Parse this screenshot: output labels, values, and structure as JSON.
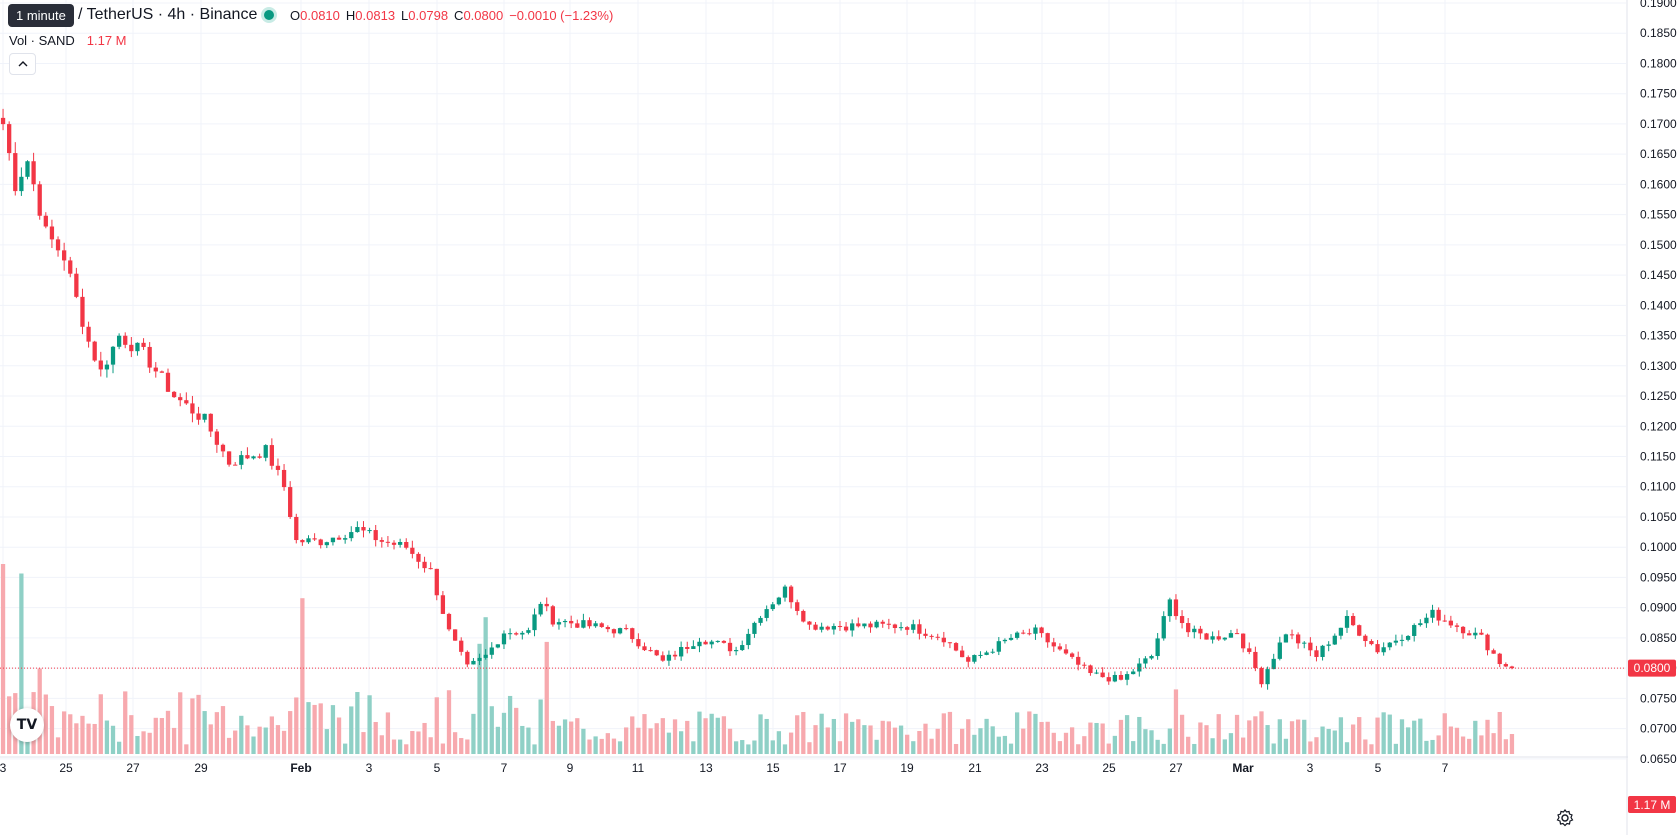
{
  "header": {
    "tooltip": "1 minute",
    "symbol_title": "/ TetherUS · 4h · Binance",
    "ohlc": [
      {
        "key": "O",
        "value": "0.0810"
      },
      {
        "key": "H",
        "value": "0.0813"
      },
      {
        "key": "L",
        "value": "0.0798"
      },
      {
        "key": "C",
        "value": "0.0800"
      },
      {
        "key": "",
        "value": "−0.0010 (−1.23%)"
      }
    ],
    "volume_label": "Vol · SAND",
    "volume_value": "1.17 M",
    "collapse_icon": "chevron-up-icon",
    "logo_text": "TV"
  },
  "colors": {
    "up": "#089981",
    "down": "#f23645",
    "up_volume": "#8fd0c6",
    "down_volume": "#f7a9ae",
    "grid": "#f0f3fa",
    "price_line": "#f23645"
  },
  "chart_data": {
    "type": "candlestick",
    "interval": "4h",
    "y_axis": {
      "min": 0.0615,
      "max": 0.19,
      "ticks": [
        "0.1900",
        "0.1850",
        "0.1800",
        "0.1750",
        "0.1700",
        "0.1650",
        "0.1600",
        "0.1550",
        "0.1500",
        "0.1450",
        "0.1400",
        "0.1350",
        "0.1300",
        "0.1250",
        "0.1200",
        "0.1150",
        "0.1100",
        "0.1050",
        "0.1000",
        "0.0950",
        "0.0900",
        "0.0850",
        "0.0800",
        "0.0750",
        "0.0700",
        "0.0650"
      ],
      "last_price_label": "0.0800",
      "volume_label": "1.17 M"
    },
    "x_axis": {
      "ticks": [
        "3",
        "25",
        "27",
        "29",
        "Feb",
        "3",
        "5",
        "7",
        "9",
        "11",
        "13",
        "15",
        "17",
        "19",
        "21",
        "23",
        "25",
        "27",
        "Mar",
        "3",
        "5",
        "7"
      ]
    },
    "close_anchors": [
      {
        "t": 0,
        "v": 0.17
      },
      {
        "t": 2,
        "v": 0.16
      },
      {
        "t": 4,
        "v": 0.164
      },
      {
        "t": 7,
        "v": 0.152
      },
      {
        "t": 10,
        "v": 0.148
      },
      {
        "t": 14,
        "v": 0.134
      },
      {
        "t": 16,
        "v": 0.129
      },
      {
        "t": 19,
        "v": 0.135
      },
      {
        "t": 23,
        "v": 0.132
      },
      {
        "t": 28,
        "v": 0.125
      },
      {
        "t": 33,
        "v": 0.121
      },
      {
        "t": 37,
        "v": 0.114
      },
      {
        "t": 43,
        "v": 0.116
      },
      {
        "t": 46,
        "v": 0.11
      },
      {
        "t": 48,
        "v": 0.101
      },
      {
        "t": 52,
        "v": 0.101
      },
      {
        "t": 58,
        "v": 0.103
      },
      {
        "t": 62,
        "v": 0.101
      },
      {
        "t": 66,
        "v": 0.1
      },
      {
        "t": 70,
        "v": 0.096
      },
      {
        "t": 73,
        "v": 0.086
      },
      {
        "t": 76,
        "v": 0.08
      },
      {
        "t": 79,
        "v": 0.082
      },
      {
        "t": 82,
        "v": 0.086
      },
      {
        "t": 86,
        "v": 0.086
      },
      {
        "t": 88,
        "v": 0.091
      },
      {
        "t": 90,
        "v": 0.088
      },
      {
        "t": 96,
        "v": 0.087
      },
      {
        "t": 102,
        "v": 0.086
      },
      {
        "t": 108,
        "v": 0.081
      },
      {
        "t": 114,
        "v": 0.085
      },
      {
        "t": 120,
        "v": 0.083
      },
      {
        "t": 124,
        "v": 0.089
      },
      {
        "t": 128,
        "v": 0.093
      },
      {
        "t": 132,
        "v": 0.087
      },
      {
        "t": 140,
        "v": 0.087
      },
      {
        "t": 148,
        "v": 0.087
      },
      {
        "t": 154,
        "v": 0.085
      },
      {
        "t": 158,
        "v": 0.081
      },
      {
        "t": 165,
        "v": 0.085
      },
      {
        "t": 169,
        "v": 0.086
      },
      {
        "t": 174,
        "v": 0.082
      },
      {
        "t": 178,
        "v": 0.079
      },
      {
        "t": 183,
        "v": 0.078
      },
      {
        "t": 188,
        "v": 0.082
      },
      {
        "t": 191,
        "v": 0.091
      },
      {
        "t": 194,
        "v": 0.086
      },
      {
        "t": 198,
        "v": 0.085
      },
      {
        "t": 202,
        "v": 0.086
      },
      {
        "t": 206,
        "v": 0.078
      },
      {
        "t": 210,
        "v": 0.086
      },
      {
        "t": 215,
        "v": 0.082
      },
      {
        "t": 220,
        "v": 0.088
      },
      {
        "t": 225,
        "v": 0.083
      },
      {
        "t": 230,
        "v": 0.086
      },
      {
        "t": 234,
        "v": 0.089
      },
      {
        "t": 238,
        "v": 0.087
      },
      {
        "t": 242,
        "v": 0.085
      },
      {
        "t": 245,
        "v": 0.081
      },
      {
        "t": 247,
        "v": 0.08
      }
    ],
    "volume_spikes": [
      {
        "t": 0,
        "v": 1.0
      },
      {
        "t": 3,
        "v": 0.95
      },
      {
        "t": 6,
        "v": 0.45
      },
      {
        "t": 49,
        "v": 0.82
      },
      {
        "t": 78,
        "v": 0.58
      },
      {
        "t": 79,
        "v": 0.72
      },
      {
        "t": 89,
        "v": 0.59
      },
      {
        "t": 192,
        "v": 0.34
      },
      {
        "t": 243,
        "v": 0.18
      }
    ],
    "candle_count": 248
  },
  "footer": {
    "settings_icon": "gear-icon"
  }
}
